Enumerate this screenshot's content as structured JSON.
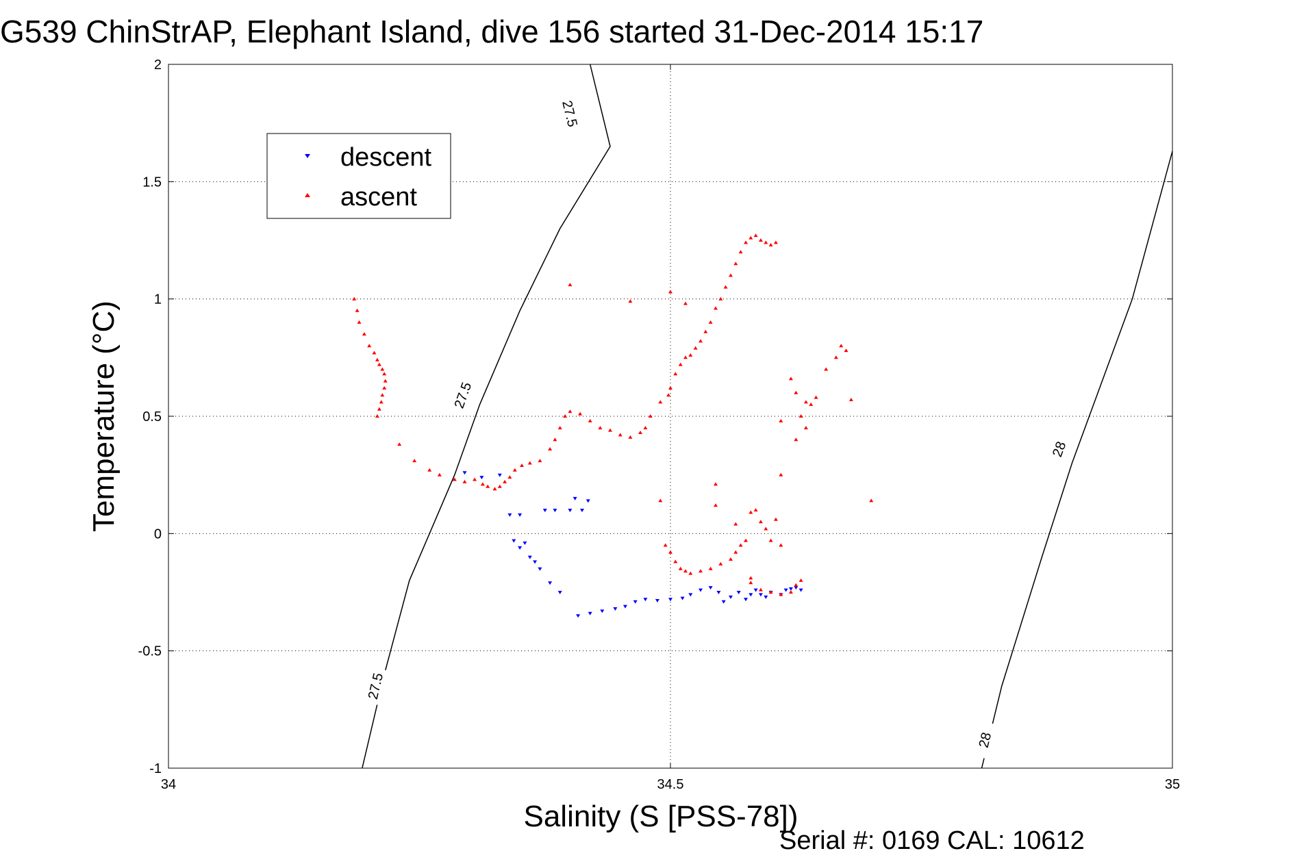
{
  "chart_data": {
    "type": "scatter",
    "title": "G539 ChinStrAP, Elephant Island, dive 156 started 31-Dec-2014 15:17",
    "xlabel": "Salinity (S [PSS-78])",
    "ylabel": "Temperature (°C)",
    "footer": "Serial #: 0169 CAL: 10612",
    "xlim": [
      34,
      35
    ],
    "ylim": [
      -1,
      2
    ],
    "xticks": [
      34,
      34.5,
      35
    ],
    "xtick_labels": [
      "34",
      "34.5",
      "35"
    ],
    "yticks": [
      -1,
      -0.5,
      0,
      0.5,
      1,
      1.5,
      2
    ],
    "ytick_labels": [
      "-1",
      "-0.5",
      "0",
      "0.5",
      "1",
      "1.5",
      "2"
    ],
    "grid": true,
    "grid_style": "dotted",
    "legend_position": "top-left",
    "contours": [
      {
        "level": "27.5",
        "points": [
          [
            34.193,
            -1.0
          ],
          [
            34.215,
            -0.6
          ],
          [
            34.24,
            -0.2
          ],
          [
            34.26,
            0.0
          ],
          [
            34.285,
            0.25
          ],
          [
            34.31,
            0.55
          ],
          [
            34.35,
            0.95
          ],
          [
            34.39,
            1.3
          ],
          [
            34.44,
            1.65
          ],
          [
            34.42,
            2.0
          ]
        ],
        "labels": [
          [
            34.206,
            -0.65
          ],
          [
            34.293,
            0.59
          ],
          [
            34.4,
            1.79
          ]
        ]
      },
      {
        "level": "28",
        "points": [
          [
            34.81,
            -1.0
          ],
          [
            34.83,
            -0.65
          ],
          [
            34.87,
            -0.1
          ],
          [
            34.9,
            0.3
          ],
          [
            34.93,
            0.65
          ],
          [
            34.96,
            1.0
          ],
          [
            35.0,
            1.63
          ]
        ],
        "labels": [
          [
            34.813,
            -0.88
          ],
          [
            34.887,
            0.36
          ]
        ]
      }
    ],
    "series": [
      {
        "name": "descent",
        "marker": "triangle-down",
        "color": "#0000ff",
        "points": [
          [
            34.295,
            0.26
          ],
          [
            34.312,
            0.24
          ],
          [
            34.33,
            0.25
          ],
          [
            34.34,
            0.08
          ],
          [
            34.35,
            0.08
          ],
          [
            34.375,
            0.1
          ],
          [
            34.385,
            0.1
          ],
          [
            34.405,
            0.15
          ],
          [
            34.418,
            0.14
          ],
          [
            34.4,
            0.1
          ],
          [
            34.412,
            0.1
          ],
          [
            34.344,
            -0.03
          ],
          [
            34.35,
            -0.06
          ],
          [
            34.355,
            -0.04
          ],
          [
            34.36,
            -0.1
          ],
          [
            34.365,
            -0.12
          ],
          [
            34.37,
            -0.15
          ],
          [
            34.38,
            -0.21
          ],
          [
            34.39,
            -0.25
          ],
          [
            34.408,
            -0.35
          ],
          [
            34.42,
            -0.34
          ],
          [
            34.432,
            -0.33
          ],
          [
            34.445,
            -0.32
          ],
          [
            34.455,
            -0.31
          ],
          [
            34.465,
            -0.29
          ],
          [
            34.475,
            -0.28
          ],
          [
            34.487,
            -0.285
          ],
          [
            34.5,
            -0.28
          ],
          [
            34.512,
            -0.275
          ],
          [
            34.52,
            -0.26
          ],
          [
            34.53,
            -0.24
          ],
          [
            34.54,
            -0.23
          ],
          [
            34.548,
            -0.25
          ],
          [
            34.553,
            -0.29
          ],
          [
            34.56,
            -0.27
          ],
          [
            34.568,
            -0.25
          ],
          [
            34.575,
            -0.28
          ],
          [
            34.58,
            -0.26
          ],
          [
            34.585,
            -0.24
          ],
          [
            34.59,
            -0.26
          ],
          [
            34.595,
            -0.27
          ],
          [
            34.6,
            -0.25
          ],
          [
            34.61,
            -0.26
          ],
          [
            34.615,
            -0.24
          ],
          [
            34.62,
            -0.235
          ],
          [
            34.625,
            -0.23
          ],
          [
            34.63,
            -0.24
          ]
        ]
      },
      {
        "name": "ascent",
        "marker": "triangle-up",
        "color": "#ff0000",
        "points": [
          [
            34.185,
            1.0
          ],
          [
            34.188,
            0.95
          ],
          [
            34.19,
            0.9
          ],
          [
            34.195,
            0.85
          ],
          [
            34.2,
            0.8
          ],
          [
            34.205,
            0.77
          ],
          [
            34.208,
            0.74
          ],
          [
            34.21,
            0.72
          ],
          [
            34.213,
            0.7
          ],
          [
            34.215,
            0.68
          ],
          [
            34.216,
            0.65
          ],
          [
            34.215,
            0.62
          ],
          [
            34.213,
            0.59
          ],
          [
            34.212,
            0.56
          ],
          [
            34.21,
            0.53
          ],
          [
            34.208,
            0.5
          ],
          [
            34.23,
            0.38
          ],
          [
            34.245,
            0.31
          ],
          [
            34.26,
            0.27
          ],
          [
            34.27,
            0.25
          ],
          [
            34.285,
            0.23
          ],
          [
            34.295,
            0.22
          ],
          [
            34.305,
            0.23
          ],
          [
            34.313,
            0.21
          ],
          [
            34.318,
            0.2
          ],
          [
            34.325,
            0.19
          ],
          [
            34.33,
            0.2
          ],
          [
            34.335,
            0.22
          ],
          [
            34.34,
            0.24
          ],
          [
            34.345,
            0.27
          ],
          [
            34.352,
            0.29
          ],
          [
            34.36,
            0.3
          ],
          [
            34.37,
            0.31
          ],
          [
            34.38,
            0.36
          ],
          [
            34.385,
            0.4
          ],
          [
            34.39,
            0.45
          ],
          [
            34.395,
            0.5
          ],
          [
            34.4,
            0.52
          ],
          [
            34.41,
            0.51
          ],
          [
            34.42,
            0.48
          ],
          [
            34.43,
            0.45
          ],
          [
            34.44,
            0.44
          ],
          [
            34.45,
            0.42
          ],
          [
            34.46,
            0.41
          ],
          [
            34.47,
            0.43
          ],
          [
            34.475,
            0.45
          ],
          [
            34.48,
            0.5
          ],
          [
            34.49,
            0.56
          ],
          [
            34.498,
            0.59
          ],
          [
            34.5,
            0.62
          ],
          [
            34.505,
            0.68
          ],
          [
            34.51,
            0.72
          ],
          [
            34.515,
            0.75
          ],
          [
            34.52,
            0.76
          ],
          [
            34.525,
            0.79
          ],
          [
            34.53,
            0.82
          ],
          [
            34.535,
            0.86
          ],
          [
            34.54,
            0.9
          ],
          [
            34.545,
            0.96
          ],
          [
            34.55,
            1.0
          ],
          [
            34.555,
            1.05
          ],
          [
            34.56,
            1.1
          ],
          [
            34.565,
            1.15
          ],
          [
            34.57,
            1.2
          ],
          [
            34.575,
            1.24
          ],
          [
            34.58,
            1.26
          ],
          [
            34.585,
            1.27
          ],
          [
            34.59,
            1.25
          ],
          [
            34.595,
            1.24
          ],
          [
            34.6,
            1.23
          ],
          [
            34.605,
            1.24
          ],
          [
            34.4,
            1.06
          ],
          [
            34.46,
            0.99
          ],
          [
            34.5,
            1.03
          ],
          [
            34.515,
            0.98
          ],
          [
            34.62,
            0.66
          ],
          [
            34.625,
            0.6
          ],
          [
            34.635,
            0.56
          ],
          [
            34.64,
            0.55
          ],
          [
            34.645,
            0.58
          ],
          [
            34.63,
            0.5
          ],
          [
            34.635,
            0.45
          ],
          [
            34.625,
            0.4
          ],
          [
            34.61,
            0.48
          ],
          [
            34.655,
            0.7
          ],
          [
            34.665,
            0.75
          ],
          [
            34.67,
            0.8
          ],
          [
            34.675,
            0.78
          ],
          [
            34.68,
            0.57
          ],
          [
            34.7,
            0.14
          ],
          [
            34.58,
            0.09
          ],
          [
            34.585,
            0.1
          ],
          [
            34.59,
            0.05
          ],
          [
            34.595,
            0.02
          ],
          [
            34.6,
            -0.03
          ],
          [
            34.605,
            0.06
          ],
          [
            34.61,
            -0.05
          ],
          [
            34.61,
            0.25
          ],
          [
            34.545,
            0.21
          ],
          [
            34.545,
            0.12
          ],
          [
            34.565,
            0.04
          ],
          [
            34.49,
            0.14
          ],
          [
            34.495,
            -0.05
          ],
          [
            34.5,
            -0.08
          ],
          [
            34.505,
            -0.12
          ],
          [
            34.51,
            -0.15
          ],
          [
            34.515,
            -0.16
          ],
          [
            34.52,
            -0.17
          ],
          [
            34.53,
            -0.16
          ],
          [
            34.54,
            -0.15
          ],
          [
            34.55,
            -0.13
          ],
          [
            34.56,
            -0.11
          ],
          [
            34.565,
            -0.08
          ],
          [
            34.57,
            -0.05
          ],
          [
            34.575,
            -0.03
          ],
          [
            34.58,
            -0.19
          ],
          [
            34.58,
            -0.21
          ],
          [
            34.59,
            -0.24
          ],
          [
            34.6,
            -0.25
          ],
          [
            34.61,
            -0.26
          ],
          [
            34.62,
            -0.25
          ],
          [
            34.625,
            -0.22
          ],
          [
            34.63,
            -0.2
          ]
        ]
      }
    ]
  }
}
